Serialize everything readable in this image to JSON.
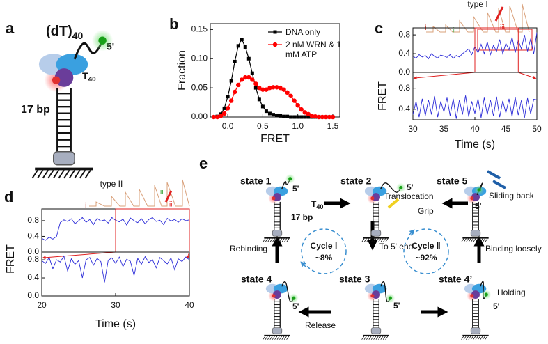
{
  "panel_labels": [
    "a",
    "b",
    "c",
    "d",
    "e"
  ],
  "diagram_a": {
    "title": {
      "text": "(dT)",
      "subscript": "40"
    },
    "end_label": "5'",
    "strand_label": {
      "text": "T",
      "subscript": "40"
    },
    "duplex_label": "17 bp"
  },
  "chart_data": [
    {
      "type": "line",
      "xlabel": "FRET",
      "ylabel": "Fraction",
      "legend": "upper right",
      "x": [
        -0.2,
        -0.15,
        -0.1,
        -0.05,
        0,
        0.05,
        0.1,
        0.15,
        0.2,
        0.25,
        0.3,
        0.35,
        0.4,
        0.45,
        0.5,
        0.55,
        0.6,
        0.65,
        0.7,
        0.75,
        0.8,
        0.85,
        0.9,
        0.95,
        1,
        1.05,
        1.1,
        1.15,
        1.2,
        1.25,
        1.3,
        1.35,
        1.4,
        1.45,
        1.5
      ],
      "series": [
        {
          "name": "DNA only",
          "color": "#000000",
          "marker": "square",
          "values": [
            0,
            0.001,
            0.005,
            0.015,
            0.035,
            0.062,
            0.095,
            0.122,
            0.133,
            0.12,
            0.1,
            0.075,
            0.05,
            0.03,
            0.018,
            0.01,
            0.006,
            0.004,
            0.003,
            0.002,
            0.001,
            0.001,
            0,
            0,
            0,
            0,
            0,
            0,
            0,
            0,
            0,
            0,
            0,
            0,
            0
          ]
        },
        {
          "name": "2 nM WRN & 1 mM ATP",
          "color": "#ff0000",
          "marker": "circle",
          "values": [
            0,
            0,
            0.002,
            0.006,
            0.015,
            0.028,
            0.043,
            0.055,
            0.064,
            0.068,
            0.068,
            0.064,
            0.057,
            0.05,
            0.047,
            0.047,
            0.05,
            0.051,
            0.051,
            0.05,
            0.047,
            0.042,
            0.036,
            0.028,
            0.02,
            0.013,
            0.008,
            0.005,
            0.002,
            0.001,
            0,
            0,
            0,
            0,
            0
          ]
        }
      ],
      "xlim": [
        -0.25,
        1.6
      ],
      "ylim": [
        0,
        0.16
      ],
      "xticks": [
        {
          "value": 0,
          "label": "0.0"
        },
        {
          "value": 0.5,
          "label": "0.5"
        },
        {
          "value": 1,
          "label": "1.0"
        },
        {
          "value": 1.5,
          "label": "1.5"
        }
      ],
      "yticks": [
        {
          "value": 0,
          "label": "0.00"
        },
        {
          "value": 0.05,
          "label": "0.05"
        },
        {
          "value": 0.1,
          "label": "0.10"
        },
        {
          "value": 0.15,
          "label": "0.15"
        }
      ]
    },
    {
      "type": "line",
      "ylabel": "FRET",
      "annotations": [
        "type I",
        "i",
        "ii",
        "iii"
      ],
      "zoom_range": [
        40,
        47
      ],
      "x": [
        30,
        30.5,
        31,
        31.5,
        32,
        32.5,
        33,
        33.5,
        34,
        34.5,
        35,
        35.5,
        36,
        36.5,
        37,
        37.5,
        38,
        38.5,
        39,
        39.5,
        40,
        40.5,
        41,
        41.5,
        42,
        42.5,
        43,
        43.5,
        44,
        44.5,
        45,
        45.5,
        46,
        46.5,
        47,
        47.5,
        48,
        48.5,
        49,
        49.5,
        50
      ],
      "series": [
        {
          "color": "#2a2ad8",
          "values": [
            0.35,
            0.3,
            0.38,
            0.33,
            0.36,
            0.29,
            0.4,
            0.34,
            0.31,
            0.37,
            0.35,
            0.32,
            0.38,
            0.3,
            0.36,
            0.33,
            0.4,
            0.45,
            0.5,
            0.38,
            0.55,
            0.42,
            0.6,
            0.4,
            0.65,
            0.38,
            0.58,
            0.45,
            0.7,
            0.4,
            0.62,
            0.48,
            0.75,
            0.42,
            0.68,
            0.5,
            0.8,
            0.45,
            0.72,
            0.4,
            0.85
          ]
        }
      ],
      "xlim": [
        30,
        50
      ],
      "ylim": [
        0,
        0.95
      ],
      "yticks": [
        {
          "value": 0,
          "label": "0.0"
        },
        {
          "value": 0.4,
          "label": "0.4"
        },
        {
          "value": 0.8,
          "label": "0.8"
        }
      ]
    },
    {
      "type": "line",
      "xlabel": "Time (s)",
      "x": [
        30,
        30.5,
        31,
        31.5,
        32,
        32.5,
        33,
        33.5,
        34,
        34.5,
        35,
        35.5,
        36,
        36.5,
        37,
        37.5,
        38,
        38.5,
        39,
        39.5,
        40,
        40.5,
        41,
        41.5,
        42,
        42.5,
        43,
        43.5,
        44,
        44.5,
        45,
        45.5,
        46,
        46.5,
        47,
        47.5,
        48,
        48.5,
        49,
        49.5,
        50
      ],
      "series": [
        {
          "color": "#2a2ad8",
          "values": [
            0.3,
            0.55,
            0.25,
            0.6,
            0.28,
            0.58,
            0.3,
            0.65,
            0.25,
            0.55,
            0.35,
            0.62,
            0.28,
            0.6,
            0.22,
            0.58,
            0.3,
            0.66,
            0.26,
            0.55,
            0.32,
            0.6,
            0.24,
            0.62,
            0.3,
            0.58,
            0.27,
            0.64,
            0.25,
            0.56,
            0.33,
            0.6,
            0.26,
            0.63,
            0.29,
            0.57,
            0.24,
            0.61,
            0.31,
            0.59,
            0.58
          ]
        }
      ],
      "xlim": [
        30,
        50
      ],
      "ylim": [
        0.2,
        1.1
      ],
      "xticks": [
        30,
        35,
        40,
        45,
        50
      ],
      "yticks": [
        {
          "value": 0.4,
          "label": "0.4"
        },
        {
          "value": 0.8,
          "label": "0.8"
        }
      ]
    },
    {
      "type": "line",
      "ylabel": "FRET",
      "annotations": [
        "type II",
        "i",
        "ii",
        "iii"
      ],
      "zoom_range": [
        30,
        40
      ],
      "x": [
        20,
        20.5,
        21,
        21.5,
        22,
        22.5,
        23,
        23.5,
        24,
        24.5,
        25,
        25.5,
        26,
        26.5,
        27,
        27.5,
        28,
        28.5,
        29,
        29.5,
        30,
        30.5,
        31,
        31.5,
        32,
        32.5,
        33,
        33.5,
        34,
        34.5,
        35,
        35.5,
        36,
        36.5,
        37,
        37.5,
        38,
        38.5,
        39,
        39.5,
        40
      ],
      "series": [
        {
          "color": "#2a2ad8",
          "values": [
            0.35,
            0.3,
            0.38,
            0.33,
            0.4,
            0.75,
            0.82,
            0.78,
            0.85,
            0.72,
            0.8,
            0.88,
            0.76,
            0.83,
            0.7,
            0.86,
            0.79,
            0.82,
            0.74,
            0.88,
            0.81,
            0.77,
            0.84,
            0.69,
            0.87,
            0.8,
            0.75,
            0.85,
            0.72,
            0.83,
            0.88,
            0.78,
            0.81,
            0.7,
            0.86,
            0.79,
            0.83,
            0.76,
            0.85,
            0.8,
            0.82
          ]
        }
      ],
      "xlim": [
        20,
        40
      ],
      "ylim": [
        0,
        1.1
      ],
      "yticks": [
        {
          "value": 0,
          "label": "0.0"
        },
        {
          "value": 0.4,
          "label": "0.4"
        },
        {
          "value": 0.8,
          "label": "0.8"
        }
      ]
    },
    {
      "type": "line",
      "xlabel": "Time (s)",
      "x": [
        20,
        20.5,
        21,
        21.5,
        22,
        22.5,
        23,
        23.5,
        24,
        24.5,
        25,
        25.5,
        26,
        26.5,
        27,
        27.5,
        28,
        28.5,
        29,
        29.5,
        30,
        30.5,
        31,
        31.5,
        32,
        32.5,
        33,
        33.5,
        34,
        34.5,
        35,
        35.5,
        36,
        36.5,
        37,
        37.5,
        38,
        38.5,
        39,
        39.5,
        40
      ],
      "series": [
        {
          "color": "#2a2ad8",
          "values": [
            0.78,
            0.72,
            0.85,
            0.6,
            0.8,
            0.75,
            0.88,
            0.55,
            0.82,
            0.7,
            0.78,
            0.4,
            0.8,
            0.85,
            0.68,
            0.83,
            0.76,
            0.3,
            0.79,
            0.84,
            0.72,
            0.86,
            0.65,
            0.81,
            0.77,
            0.45,
            0.83,
            0.7,
            0.87,
            0.74,
            0.8,
            0.62,
            0.85,
            0.78,
            0.71,
            0.84,
            0.58,
            0.82,
            0.76,
            0.86,
            0.8
          ]
        }
      ],
      "xlim": [
        20,
        40
      ],
      "ylim": [
        0,
        0.97
      ],
      "xticks": [
        20,
        30,
        40
      ],
      "yticks": [
        {
          "value": 0,
          "label": "0.0"
        },
        {
          "value": 0.4,
          "label": "0.4"
        },
        {
          "value": 0.8,
          "label": "0.8"
        }
      ]
    }
  ],
  "diagram_e": {
    "states": [
      "state 1",
      "state 2",
      "state 5",
      "state 4",
      "state 3",
      "state 4’"
    ],
    "state1_labels": {
      "end": "5'",
      "strand": {
        "text": "T",
        "subscript": "40"
      },
      "duplex": "17 bp"
    },
    "end_labels": [
      "5'",
      "5'",
      "5'",
      "5'",
      "5'"
    ],
    "transitions": [
      "Translocation",
      "Grip",
      "Sliding back",
      "Rebinding",
      "To 5' end",
      "Binding loosely",
      "Holding",
      "Release"
    ],
    "cycles": [
      {
        "name": "Cycle Ⅰ",
        "share": "~8%"
      },
      {
        "name": "Cycle Ⅱ",
        "share": "~92%"
      }
    ]
  }
}
